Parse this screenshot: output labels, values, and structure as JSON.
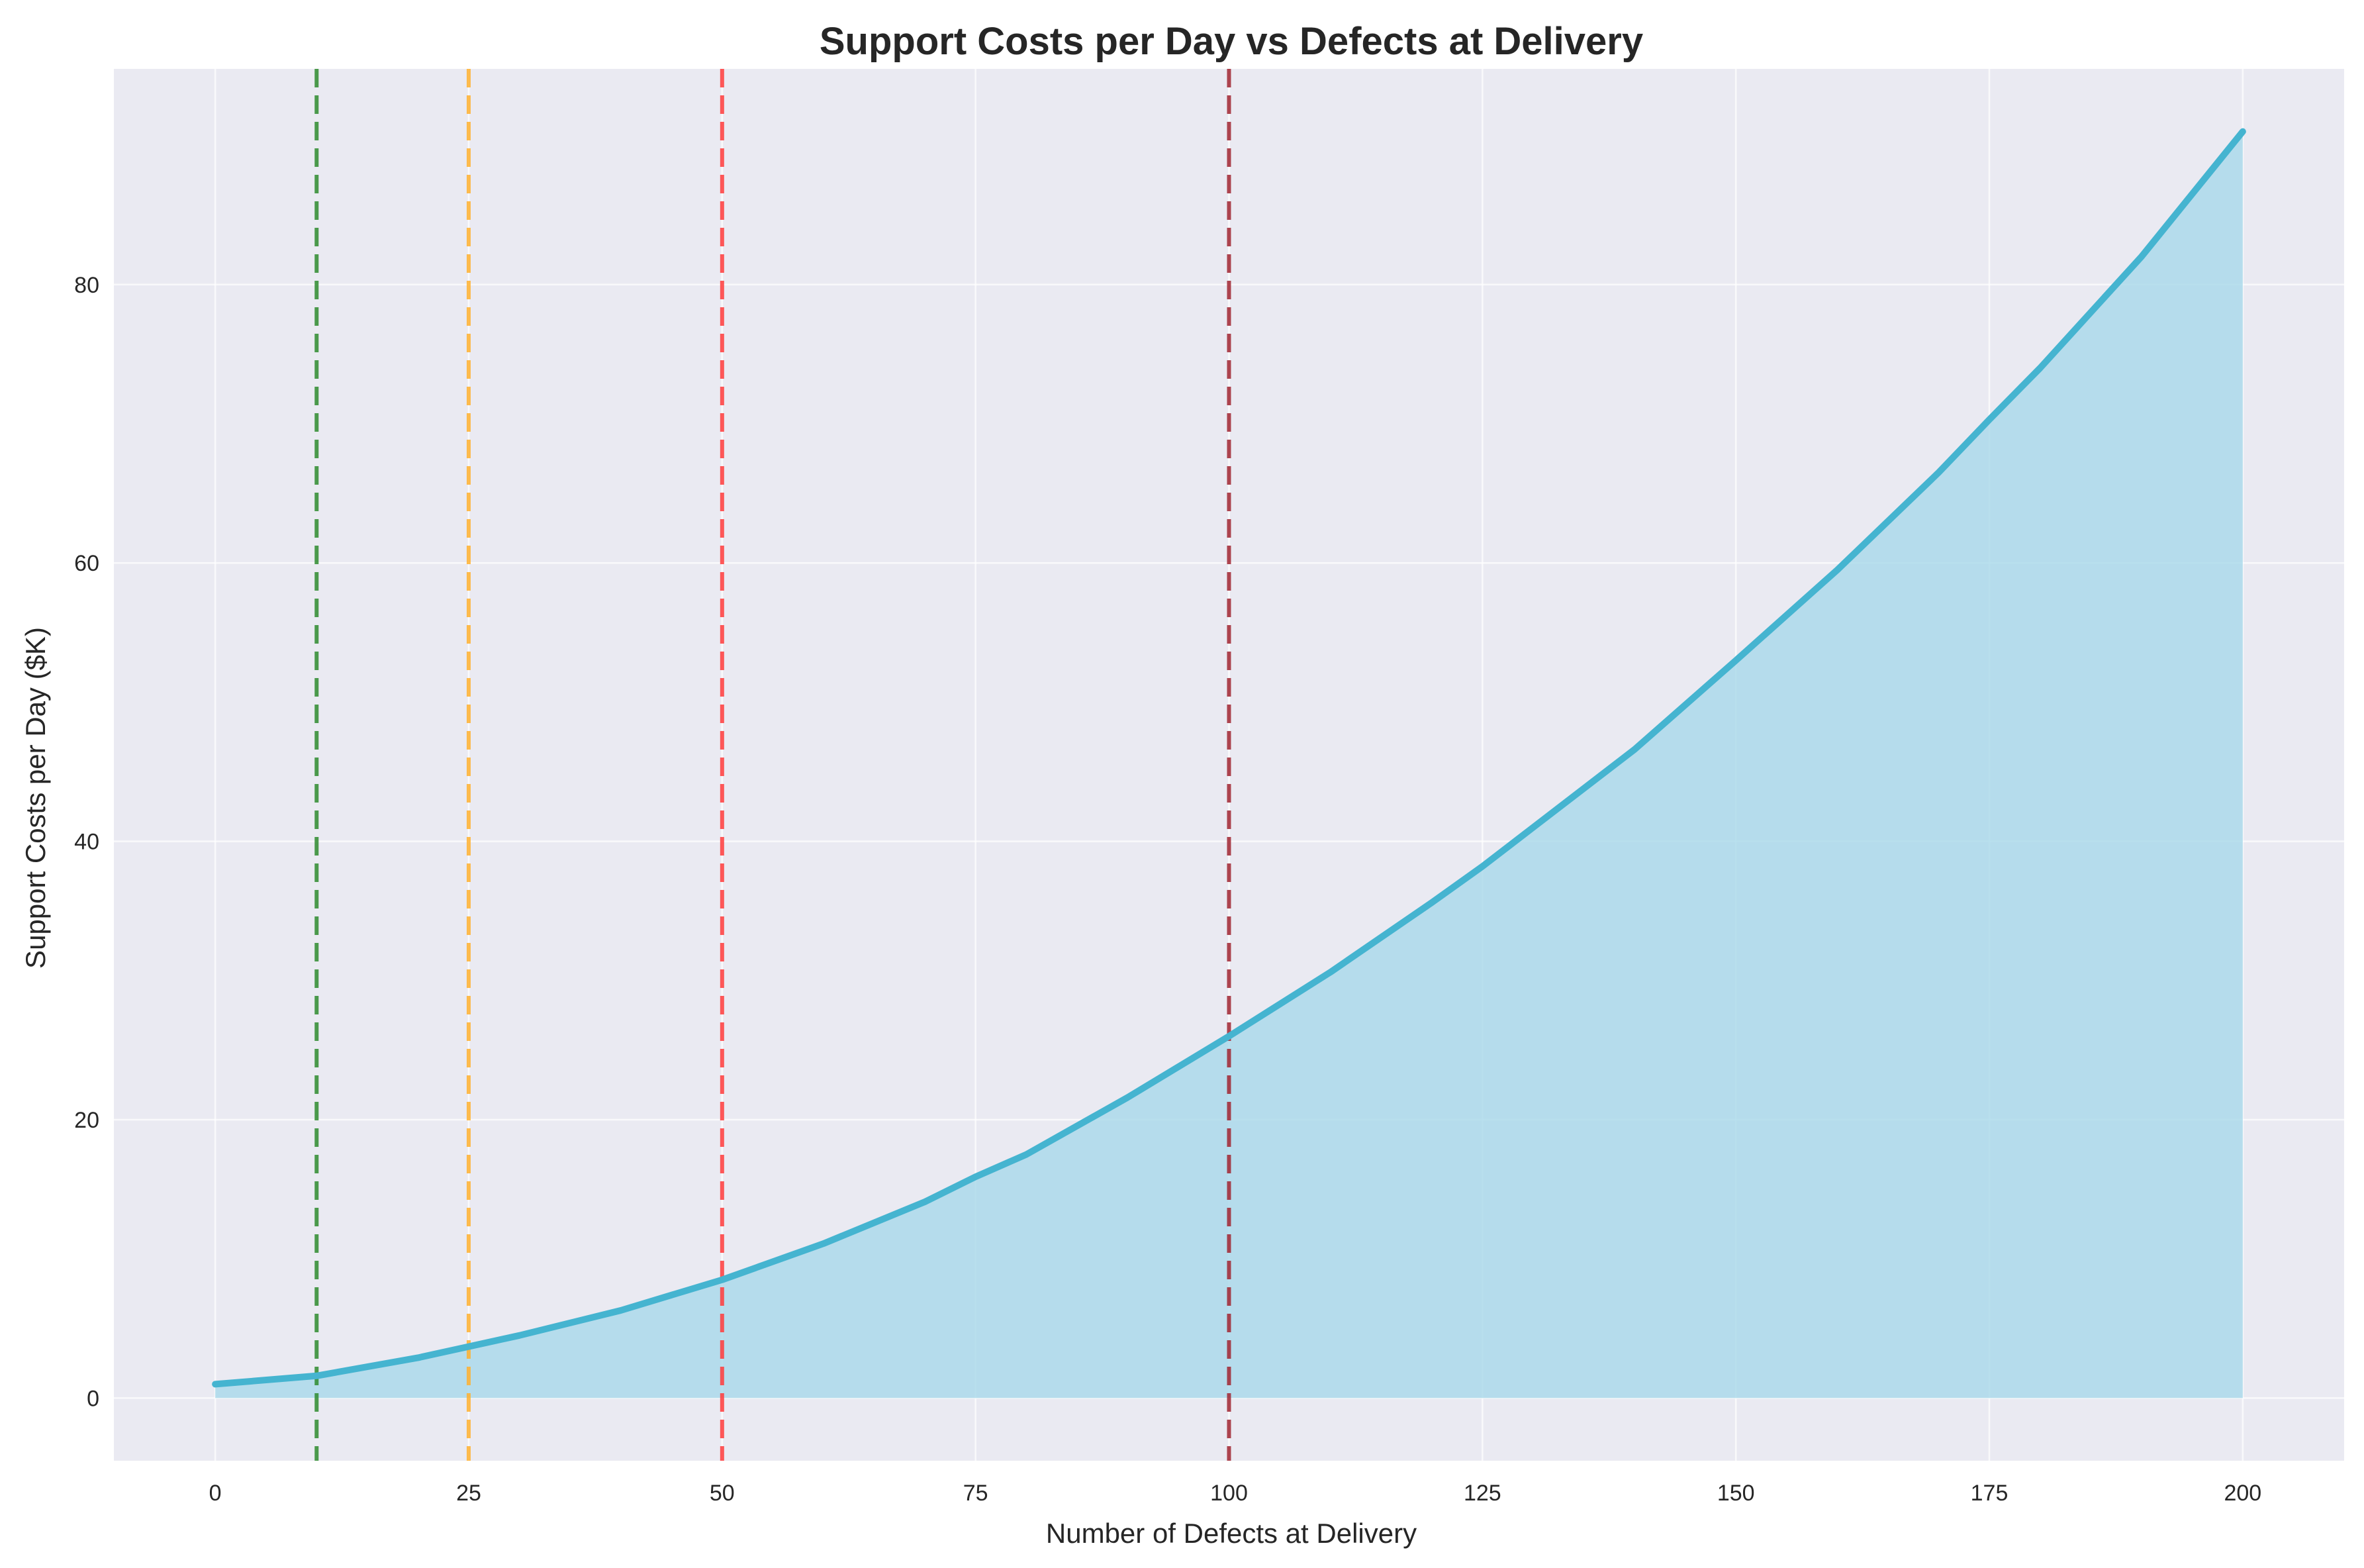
{
  "chart_data": {
    "type": "area",
    "title": "Support Costs per Day vs Defects at Delivery",
    "xlabel": "Number of Defects at Delivery",
    "ylabel": "Support Costs per Day ($K)",
    "xlim": [
      -10,
      210
    ],
    "ylim": [
      -4.5,
      95.5
    ],
    "x_ticks": [
      0,
      25,
      50,
      75,
      100,
      125,
      150,
      175,
      200
    ],
    "y_ticks": [
      0,
      20,
      40,
      60,
      80
    ],
    "grid": true,
    "series": [
      {
        "x": [
          0,
          10,
          20,
          25,
          30,
          40,
          50,
          60,
          70,
          75,
          80,
          90,
          100,
          110,
          120,
          125,
          130,
          140,
          150,
          160,
          170,
          175,
          180,
          190,
          200
        ],
        "y": [
          1.0,
          1.6,
          2.9,
          3.7,
          4.5,
          6.3,
          8.5,
          11.1,
          14.1,
          15.9,
          17.5,
          21.6,
          26.0,
          30.6,
          35.6,
          38.2,
          41.0,
          46.6,
          53.0,
          59.5,
          66.5,
          70.3,
          74.0,
          82.0,
          91.0
        ],
        "color": "#45b4d0",
        "fill_color": "#a8d8ea"
      }
    ],
    "reference_lines": [
      {
        "x": 10,
        "color": "#2e8b2e"
      },
      {
        "x": 25,
        "color": "#ffb02e"
      },
      {
        "x": 50,
        "color": "#ff3b3b"
      },
      {
        "x": 100,
        "color": "#a02530"
      }
    ],
    "background_color": "#eaeaf2"
  }
}
